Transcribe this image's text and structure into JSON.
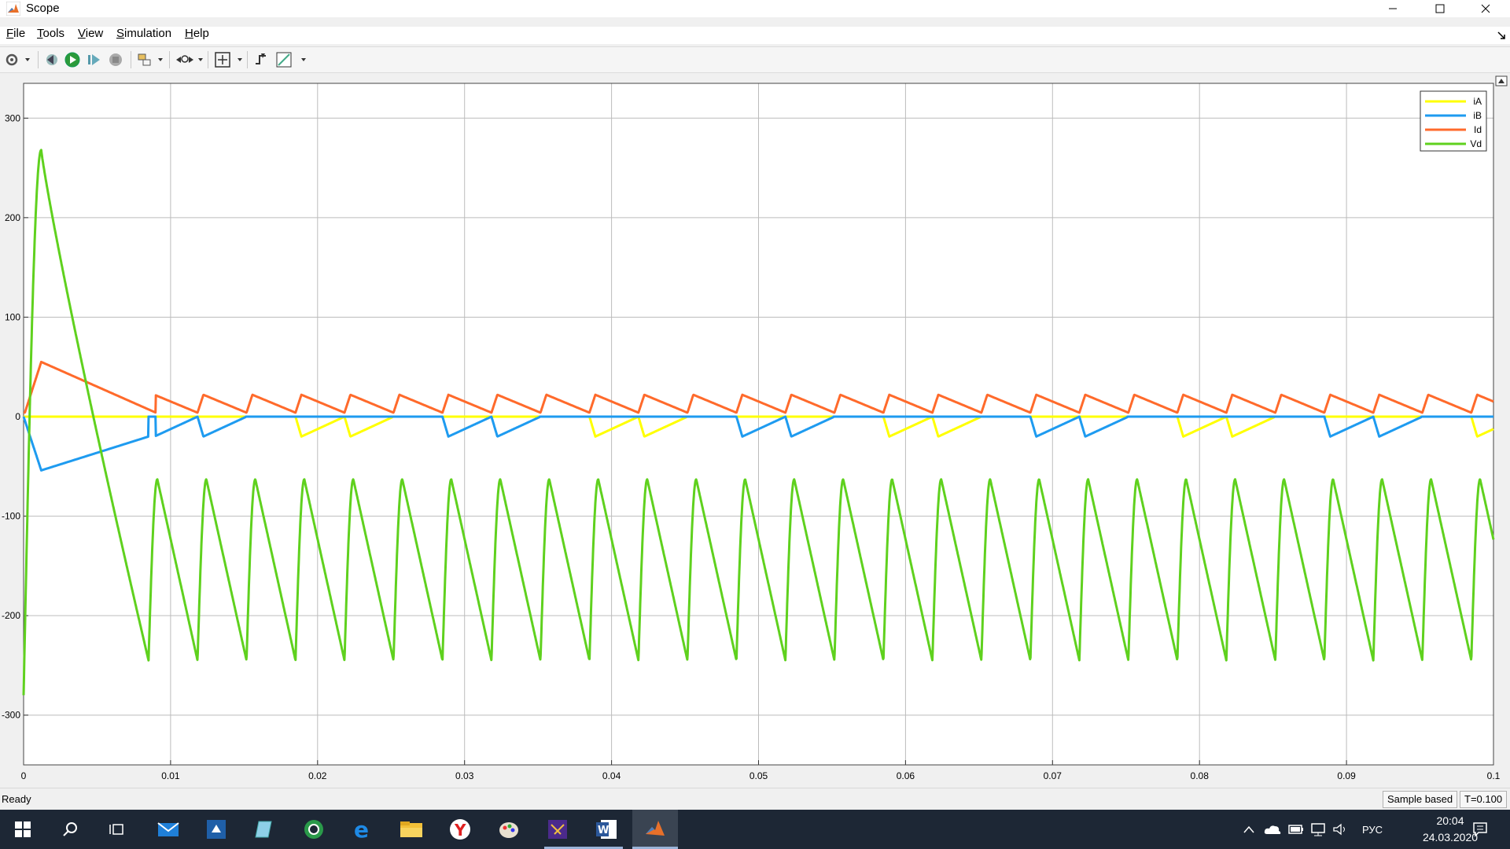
{
  "window": {
    "title": "Scope"
  },
  "menu": {
    "items": [
      {
        "hotkey": "F",
        "rest": "ile"
      },
      {
        "hotkey": "T",
        "rest": "ools"
      },
      {
        "hotkey": "V",
        "rest": "iew"
      },
      {
        "hotkey": "S",
        "rest": "imulation"
      },
      {
        "hotkey": "H",
        "rest": "elp"
      }
    ]
  },
  "toolbar": {
    "icons": [
      "settings-icon",
      "step-back-icon",
      "run-icon",
      "step-forward-icon",
      "stop-icon",
      "highlight-block-icon",
      "zoom-icon",
      "autoscale-icon",
      "trigger-icon",
      "cursor-measure-icon"
    ]
  },
  "chart_data": {
    "type": "line",
    "xlim": [
      0,
      0.1
    ],
    "ylim": [
      -350,
      335
    ],
    "x_ticks": [
      "0",
      "0.01",
      "0.02",
      "0.03",
      "0.04",
      "0.05",
      "0.06",
      "0.07",
      "0.08",
      "0.09",
      "0.1"
    ],
    "y_ticks": [
      "300",
      "200",
      "100",
      "0",
      "-100",
      "-200",
      "-300"
    ],
    "grid": true,
    "legend_position": "top-right",
    "period_s": 0.003333,
    "series": [
      {
        "name": "iA",
        "color": "#ffff00",
        "steady_min": -20,
        "steady_max": 0
      },
      {
        "name": "iB",
        "color": "#1e9bf0",
        "initial_min": -54,
        "steady_min": -20,
        "steady_max": 0
      },
      {
        "name": "Id",
        "color": "#ff6a2b",
        "initial_peak": 55,
        "steady_min": 4,
        "steady_max": 22
      },
      {
        "name": "Vd",
        "color": "#5fd11e",
        "initial_peak": 268,
        "initial_start": -280,
        "steady_min": -245,
        "steady_max": -63
      }
    ]
  },
  "status": {
    "text": "Ready",
    "sample_mode": "Sample based",
    "time": "T=0.100"
  },
  "taskbar": {
    "apps": [
      "windows-start-icon",
      "search-icon",
      "task-view-icon",
      "mail-icon",
      "pycharm-icon",
      "notepad-icon",
      "browser-icon",
      "edge-icon",
      "file-explorer-icon",
      "yandex-icon",
      "paint-icon",
      "visual-studio-icon",
      "word-icon",
      "matlab-icon"
    ],
    "language": "РУС",
    "time": "20:04",
    "date": "24.03.2020"
  }
}
